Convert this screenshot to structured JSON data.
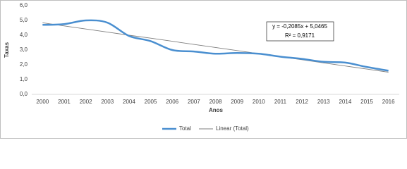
{
  "chart_data": {
    "type": "line",
    "y_label": "Taxas",
    "x_label": "Anos",
    "categories": [
      "2000",
      "2001",
      "2002",
      "2003",
      "2004",
      "2005",
      "2006",
      "2007",
      "2008",
      "2009",
      "2010",
      "2011",
      "2012",
      "2013",
      "2014",
      "2015",
      "2016"
    ],
    "series": [
      {
        "name": "Total",
        "color": "#4a8fd0",
        "values": [
          4.7,
          4.75,
          5.0,
          4.85,
          3.95,
          3.6,
          3.0,
          2.9,
          2.75,
          2.8,
          2.75,
          2.55,
          2.4,
          2.2,
          2.15,
          1.85,
          1.6
        ]
      },
      {
        "name": "Linear (Total)",
        "color": "#7f7f7f",
        "values": [
          4.84,
          4.63,
          4.42,
          4.21,
          4.0,
          3.8,
          3.59,
          3.38,
          3.17,
          2.96,
          2.75,
          2.54,
          2.34,
          2.13,
          1.92,
          1.71,
          1.5
        ]
      }
    ],
    "ylim": [
      0,
      6
    ],
    "yticks": [
      {
        "value": 0,
        "label": "0,0"
      },
      {
        "value": 1,
        "label": "1,0"
      },
      {
        "value": 2,
        "label": "2,0"
      },
      {
        "value": 3,
        "label": "3,0"
      },
      {
        "value": 4,
        "label": "4,0"
      },
      {
        "value": 5,
        "label": "5,0"
      },
      {
        "value": 6,
        "label": "6,0"
      }
    ],
    "grid": false,
    "annotation": [
      "y = -0,2085x + 5,0465",
      "R² = 0,9171"
    ],
    "legend": "bottom"
  }
}
